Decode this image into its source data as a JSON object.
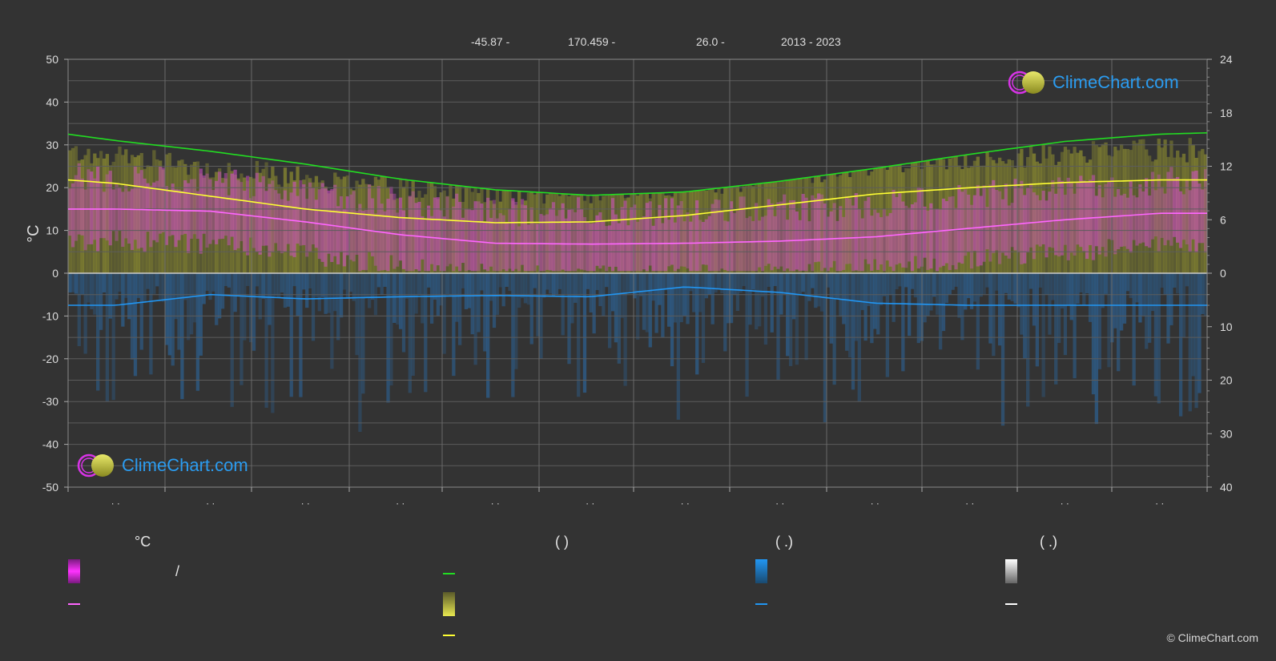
{
  "header": {
    "lat": "-45.87 -",
    "lon": "170.459 -",
    "elev": "26.0 -",
    "years": "2013 - 2023"
  },
  "colors": {
    "background": "#333333",
    "sunshine": "#22dd22",
    "daylight": "#ffff33",
    "temp_mean": "#ff66ff",
    "precip": "#2196f3",
    "snow": "#ffffff"
  },
  "chart_data": {
    "type": "line",
    "left_axis": {
      "label": "°C",
      "ylim": [
        -50,
        50
      ],
      "ticks": [
        "50",
        "40",
        "30",
        "20",
        "10",
        "0",
        "-10",
        "-20",
        "-30",
        "-40",
        "-50"
      ]
    },
    "right_axis_top": {
      "ylim": [
        0,
        24
      ],
      "ticks": [
        "24",
        "18",
        "12",
        "6",
        "0"
      ]
    },
    "right_axis_bottom": {
      "ylim": [
        0,
        40
      ],
      "ticks": [
        "10",
        "20",
        "30",
        "40"
      ]
    },
    "x_tick_labels": [
      "· ·",
      "· ·",
      "· ·",
      "· ·",
      "· ·",
      "· ·",
      "· ·",
      "· ·",
      "· ·",
      "· ·",
      "· ·",
      "· ·"
    ],
    "grid": true,
    "series": [
      {
        "key": "daylight",
        "values": [
          32.5,
          31.0,
          28.5,
          25.5,
          22.0,
          19.5,
          18.2,
          19.0,
          21.5,
          24.5,
          27.8,
          30.8,
          32.5,
          32.8
        ]
      },
      {
        "key": "sunshine",
        "values": [
          21.8,
          21.0,
          18.0,
          15.0,
          13.0,
          11.8,
          12.0,
          13.5,
          16.0,
          18.5,
          20.0,
          21.2,
          21.8,
          21.8
        ]
      },
      {
        "key": "temp_mean",
        "values": [
          15.0,
          15.0,
          14.5,
          12.0,
          9.0,
          7.0,
          6.8,
          7.0,
          7.5,
          8.5,
          10.5,
          12.5,
          14.0,
          14.0
        ]
      },
      {
        "key": "precip",
        "values": [
          -7.5,
          -7.5,
          -5.0,
          -6.0,
          -5.5,
          -5.2,
          -5.5,
          -3.2,
          -4.5,
          -7.0,
          -7.5,
          -7.5,
          -7.5,
          -7.5
        ]
      }
    ],
    "x": [
      0,
      0.5,
      1.5,
      2.5,
      3.5,
      4.5,
      5.5,
      6.5,
      7.5,
      8.5,
      9.5,
      10.5,
      11.5,
      12
    ]
  },
  "legend": {
    "col1_title": "°C",
    "col1_row1_text": "/",
    "col2_title": "(          )",
    "col3_title": "(   .)",
    "col4_title": "(   .)"
  },
  "logo": {
    "text": "ClimeChart.com"
  },
  "copyright": "© ClimeChart.com"
}
